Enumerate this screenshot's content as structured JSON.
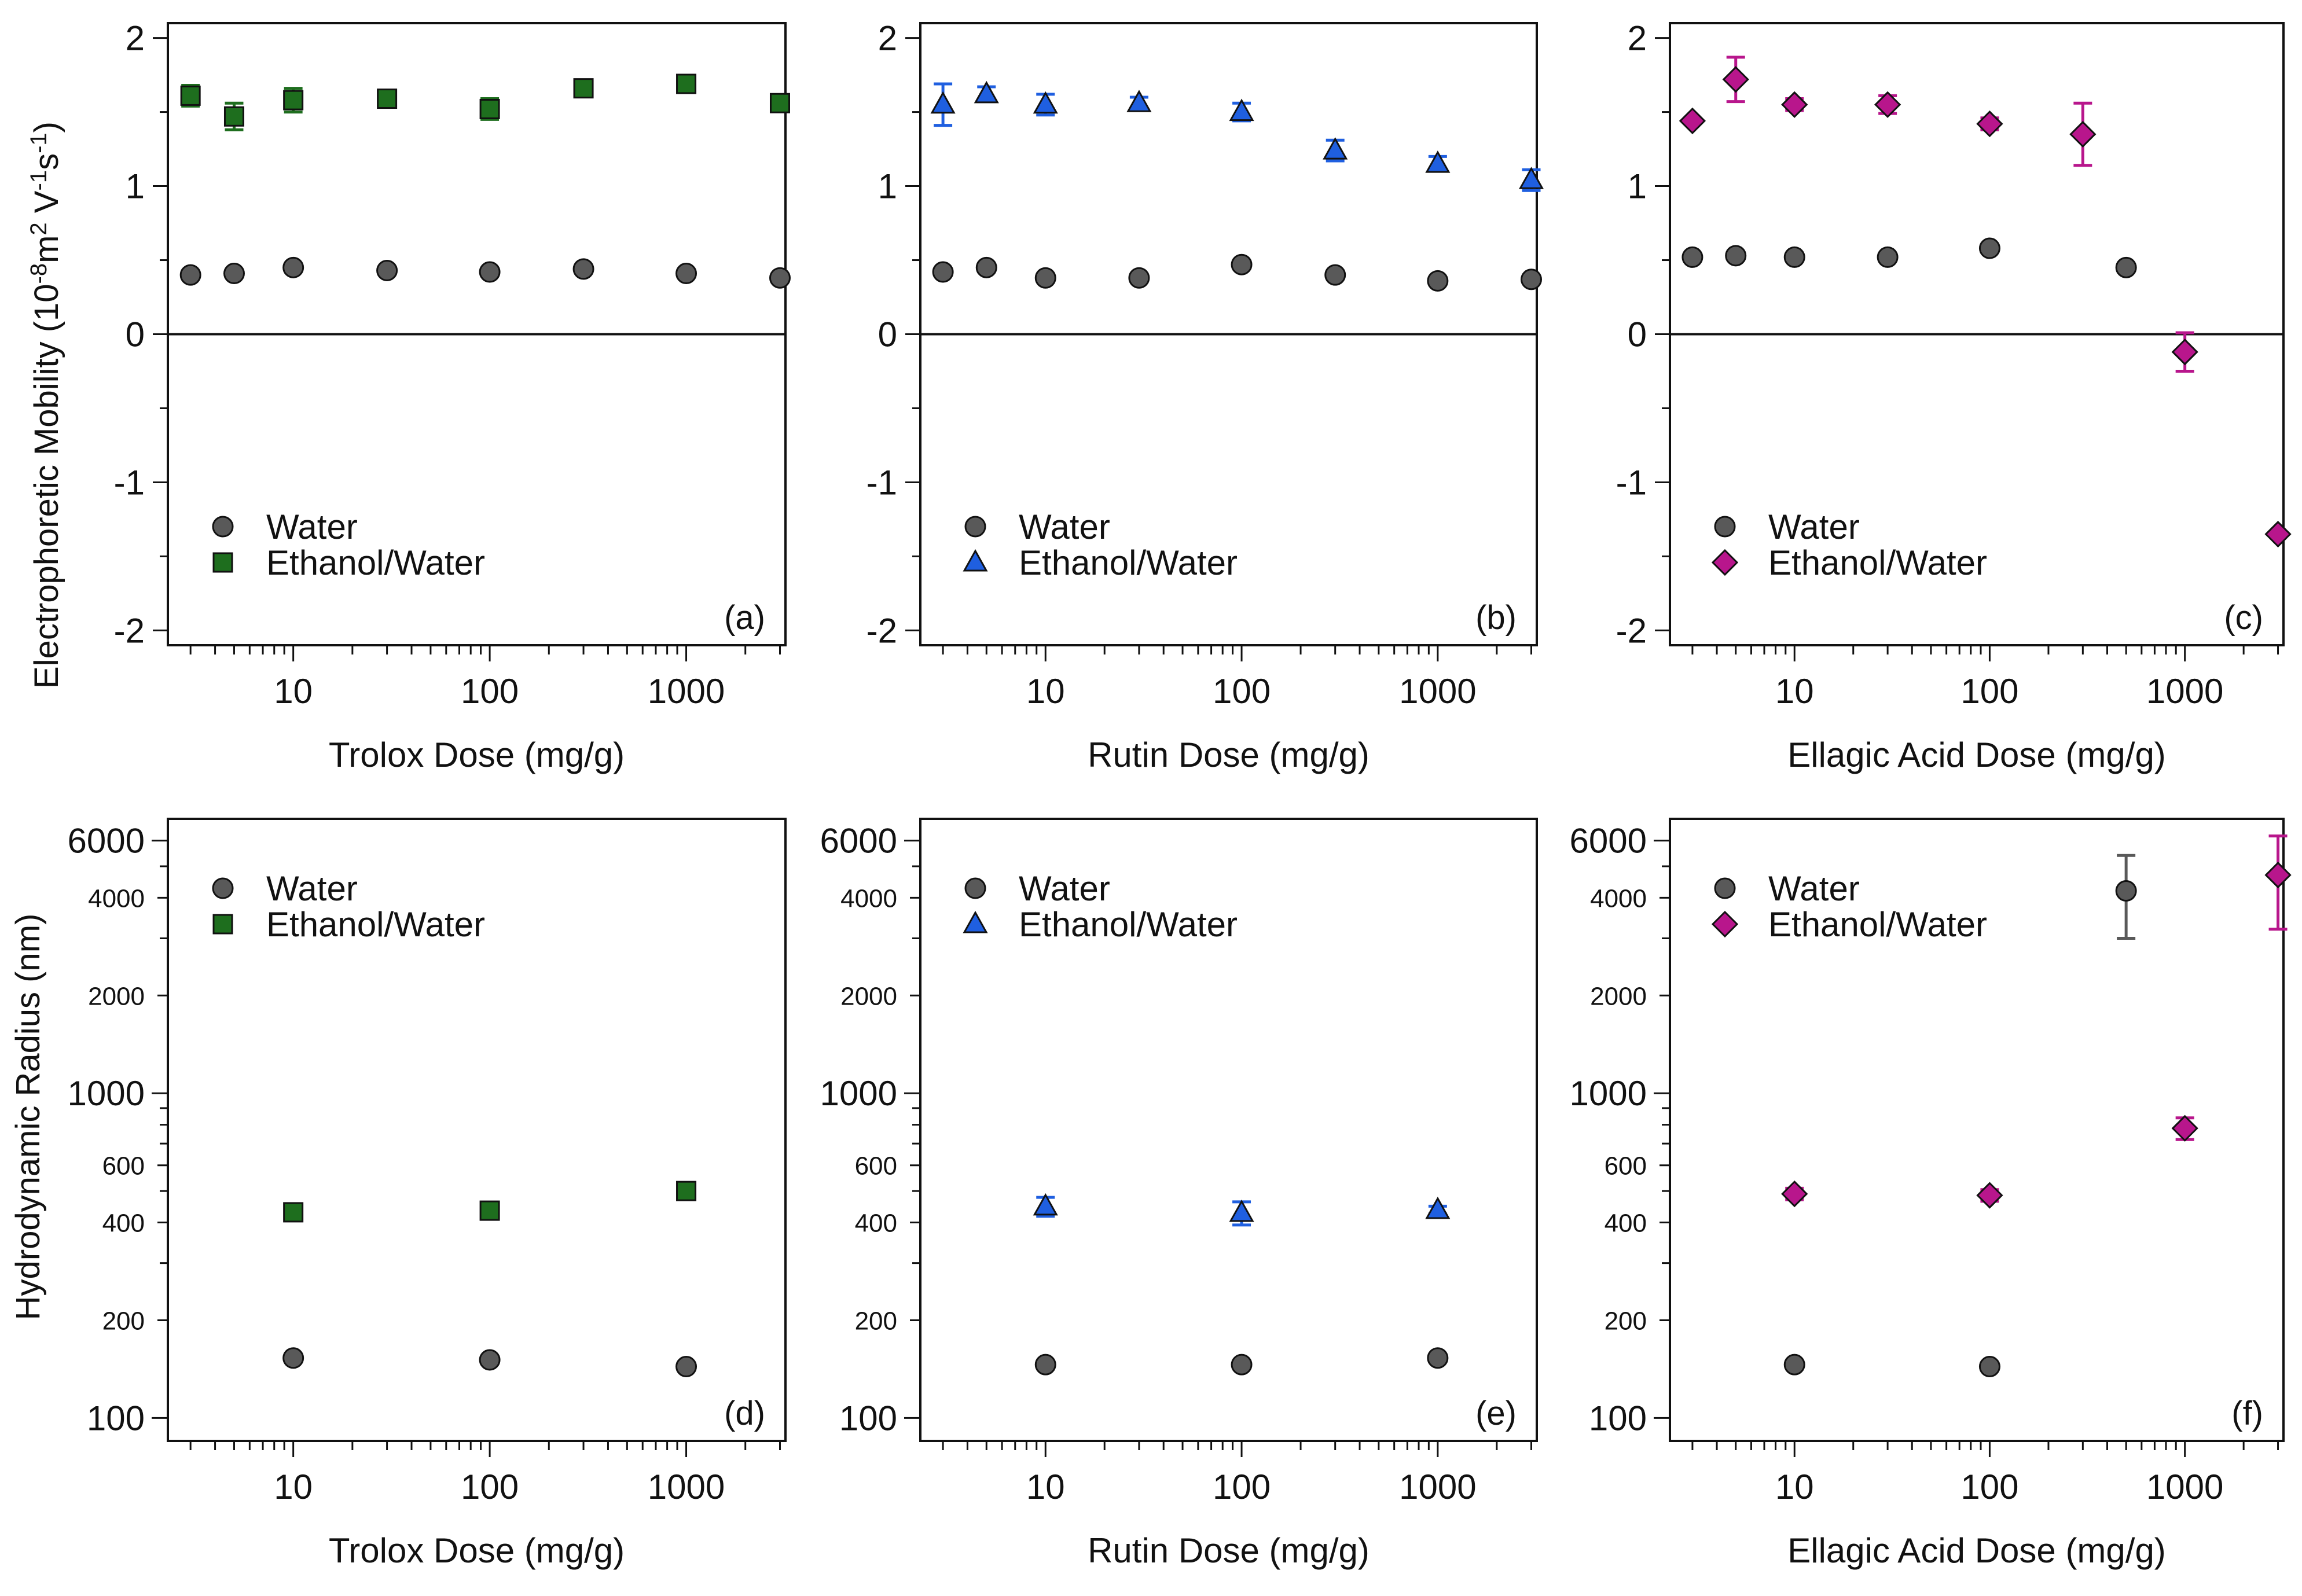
{
  "figure": {
    "ylabel_top": "Electrophoretic Mobility (10",
    "ylabel_top_exp1": "-8",
    "ylabel_top_mid": "m",
    "ylabel_top_exp2": "2",
    "ylabel_top_mid2": " V",
    "ylabel_top_exp3": "-1",
    "ylabel_top_mid3": "s",
    "ylabel_top_exp4": "-1",
    "ylabel_top_end": ")",
    "ylabel_bottom": "Hydrodynamic Radius (nm)"
  },
  "colors": {
    "water": "#595959",
    "trolox": "#1e6e1e",
    "rutin": "#1f5fe0",
    "ellagic": "#b8168c",
    "axis": "#111111"
  },
  "chart_data": [
    {
      "type": "scatter",
      "panel": "(a)",
      "metric": "mobility",
      "xlabel": "Trolox Dose (mg/g)",
      "xscale": "log",
      "xlim": [
        2.3,
        3200
      ],
      "ylim": [
        -2.1,
        2.1
      ],
      "x_ticks": [
        "10",
        "100",
        "1000"
      ],
      "y_ticks": [
        "2",
        "1",
        "0",
        "-1",
        "-2"
      ],
      "legend": [
        "Water",
        "Ethanol/Water"
      ],
      "series": [
        {
          "name": "Water",
          "marker": "circle",
          "color": "water",
          "x": [
            3,
            5,
            10,
            30,
            100,
            300,
            1000,
            3000
          ],
          "y": [
            0.4,
            0.41,
            0.45,
            0.43,
            0.42,
            0.44,
            0.41,
            0.38
          ],
          "err": [
            0,
            0,
            0,
            0,
            0,
            0,
            0,
            0
          ]
        },
        {
          "name": "Ethanol/Water",
          "marker": "square",
          "color": "trolox",
          "x": [
            3,
            5,
            10,
            30,
            100,
            300,
            1000,
            3000
          ],
          "y": [
            1.61,
            1.47,
            1.58,
            1.59,
            1.52,
            1.66,
            1.69,
            1.56
          ],
          "err": [
            0.07,
            0.09,
            0.08,
            0.05,
            0.07,
            0.0,
            0.0,
            0.0
          ]
        }
      ]
    },
    {
      "type": "scatter",
      "panel": "(b)",
      "metric": "mobility",
      "xlabel": "Rutin Dose (mg/g)",
      "xscale": "log",
      "xlim": [
        2.3,
        3200
      ],
      "ylim": [
        -2.1,
        2.1
      ],
      "x_ticks": [
        "10",
        "100",
        "1000"
      ],
      "y_ticks": [
        "2",
        "1",
        "0",
        "-1",
        "-2"
      ],
      "legend": [
        "Water",
        "Ethanol/Water"
      ],
      "series": [
        {
          "name": "Water",
          "marker": "circle",
          "color": "water",
          "x": [
            3,
            5,
            10,
            30,
            100,
            300,
            1000,
            3000
          ],
          "y": [
            0.42,
            0.45,
            0.38,
            0.38,
            0.47,
            0.4,
            0.36,
            0.37
          ],
          "err": [
            0,
            0,
            0,
            0,
            0,
            0,
            0,
            0
          ]
        },
        {
          "name": "Ethanol/Water",
          "marker": "triangle",
          "color": "rutin",
          "x": [
            3,
            5,
            10,
            30,
            100,
            300,
            1000,
            3000
          ],
          "y": [
            1.55,
            1.62,
            1.55,
            1.56,
            1.5,
            1.24,
            1.15,
            1.04
          ],
          "err": [
            0.14,
            0.05,
            0.07,
            0.04,
            0.06,
            0.07,
            0.05,
            0.07
          ]
        }
      ]
    },
    {
      "type": "scatter",
      "panel": "(c)",
      "metric": "mobility",
      "xlabel": "Ellagic Acid Dose (mg/g)",
      "xscale": "log",
      "xlim": [
        2.3,
        3200
      ],
      "ylim": [
        -2.1,
        2.1
      ],
      "x_ticks": [
        "10",
        "100",
        "1000"
      ],
      "y_ticks": [
        "2",
        "1",
        "0",
        "-1",
        "-2"
      ],
      "legend": [
        "Water",
        "Ethanol/Water"
      ],
      "series": [
        {
          "name": "Water",
          "marker": "circle",
          "color": "water",
          "x": [
            3,
            5,
            10,
            30,
            100,
            500
          ],
          "y": [
            0.52,
            0.53,
            0.52,
            0.52,
            0.58,
            0.45
          ],
          "err": [
            0,
            0,
            0,
            0,
            0,
            0
          ]
        },
        {
          "name": "Ethanol/Water",
          "marker": "diamond",
          "color": "ellagic",
          "x": [
            3,
            5,
            10,
            30,
            100,
            300,
            1000,
            3000
          ],
          "y": [
            1.44,
            1.72,
            1.55,
            1.55,
            1.42,
            1.35,
            -0.12,
            -1.35
          ],
          "err": [
            0.0,
            0.15,
            0.04,
            0.06,
            0.04,
            0.21,
            0.13,
            0.0
          ]
        }
      ]
    },
    {
      "type": "scatter",
      "panel": "(d)",
      "metric": "radius",
      "xlabel": "Trolox Dose (mg/g)",
      "xscale": "log",
      "yscale": "log",
      "xlim": [
        2.3,
        3200
      ],
      "ylim": [
        85,
        7000
      ],
      "x_ticks": [
        "10",
        "100",
        "1000"
      ],
      "y_ticks_major": [
        "6000",
        "1000",
        "100"
      ],
      "y_ticks_minor": [
        "4000",
        "2000",
        "600",
        "400",
        "200"
      ],
      "legend": [
        "Water",
        "Ethanol/Water"
      ],
      "series": [
        {
          "name": "Water",
          "marker": "circle",
          "color": "water",
          "x": [
            10,
            100,
            1000
          ],
          "y": [
            153,
            151,
            144
          ],
          "err": [
            0,
            0,
            0
          ]
        },
        {
          "name": "Ethanol/Water",
          "marker": "square",
          "color": "trolox",
          "x": [
            10,
            100,
            1000
          ],
          "y": [
            430,
            435,
            500
          ],
          "err": [
            0,
            0,
            0
          ]
        }
      ]
    },
    {
      "type": "scatter",
      "panel": "(e)",
      "metric": "radius",
      "xlabel": "Rutin Dose (mg/g)",
      "xscale": "log",
      "yscale": "log",
      "xlim": [
        2.3,
        3200
      ],
      "ylim": [
        85,
        7000
      ],
      "x_ticks": [
        "10",
        "100",
        "1000"
      ],
      "y_ticks_major": [
        "6000",
        "1000",
        "100"
      ],
      "y_ticks_minor": [
        "4000",
        "2000",
        "600",
        "400",
        "200"
      ],
      "legend": [
        "Water",
        "Ethanol/Water"
      ],
      "series": [
        {
          "name": "Water",
          "marker": "circle",
          "color": "water",
          "x": [
            10,
            100,
            1000
          ],
          "y": [
            146,
            146,
            153
          ],
          "err": [
            0,
            0,
            0
          ]
        },
        {
          "name": "Ethanol/Water",
          "marker": "triangle",
          "color": "rutin",
          "x": [
            10,
            100,
            1000
          ],
          "y": [
            448,
            428,
            437
          ],
          "err": [
            30,
            35,
            12
          ]
        }
      ]
    },
    {
      "type": "scatter",
      "panel": "(f)",
      "metric": "radius",
      "xlabel": "Ellagic Acid Dose (mg/g)",
      "xscale": "log",
      "yscale": "log",
      "xlim": [
        2.3,
        3200
      ],
      "ylim": [
        85,
        7000
      ],
      "x_ticks": [
        "10",
        "100",
        "1000"
      ],
      "y_ticks_major": [
        "6000",
        "1000",
        "100"
      ],
      "y_ticks_minor": [
        "4000",
        "2000",
        "600",
        "400",
        "200"
      ],
      "legend": [
        "Water",
        "Ethanol/Water"
      ],
      "series": [
        {
          "name": "Water",
          "marker": "circle",
          "color": "water",
          "x": [
            10,
            100,
            500
          ],
          "y": [
            146,
            144,
            4200
          ],
          "err": [
            0,
            0,
            1200
          ]
        },
        {
          "name": "Ethanol/Water",
          "marker": "diamond",
          "color": "ellagic",
          "x": [
            10,
            100,
            1000,
            3000
          ],
          "y": [
            490,
            485,
            780,
            4700
          ],
          "err": [
            20,
            20,
            60,
            1500
          ]
        }
      ]
    }
  ]
}
